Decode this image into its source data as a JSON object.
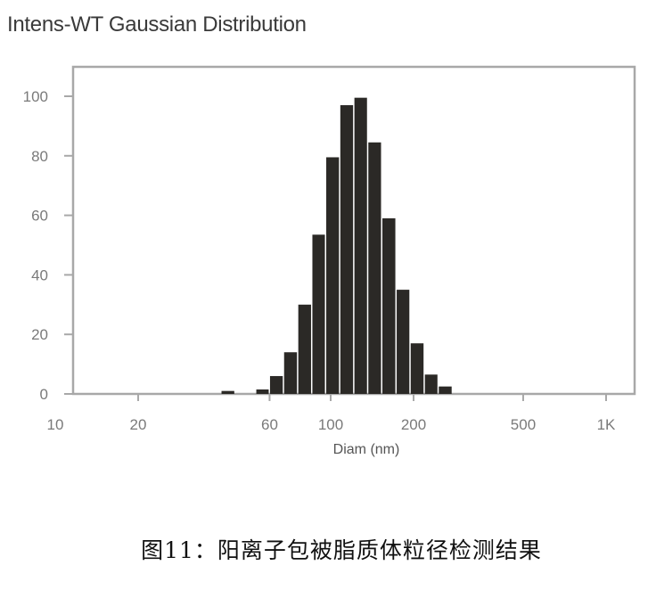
{
  "chart_data": {
    "type": "bar",
    "title": "Intens-WT Gaussian Distribution",
    "xlabel": "Diam (nm)",
    "ylabel": "",
    "x_scale": "log",
    "xlim": [
      10,
      1200
    ],
    "ylim": [
      0,
      110
    ],
    "x_ticks": [
      {
        "value": 10,
        "label": "10"
      },
      {
        "value": 20,
        "label": "20"
      },
      {
        "value": 60,
        "label": "60"
      },
      {
        "value": 100,
        "label": "100"
      },
      {
        "value": 200,
        "label": "200"
      },
      {
        "value": 500,
        "label": "500"
      },
      {
        "value": 1000,
        "label": "1K"
      }
    ],
    "y_ticks": [
      {
        "value": 0,
        "label": "0"
      },
      {
        "value": 20,
        "label": "20"
      },
      {
        "value": 40,
        "label": "40"
      },
      {
        "value": 60,
        "label": "60"
      },
      {
        "value": 80,
        "label": "80"
      },
      {
        "value": 100,
        "label": "100"
      }
    ],
    "grid": false,
    "bars": [
      {
        "x0": 40.0,
        "x1": 45.0,
        "value": 1
      },
      {
        "x0": 53.5,
        "x1": 60.0,
        "value": 1.5
      },
      {
        "x0": 60.0,
        "x1": 67.5,
        "value": 6
      },
      {
        "x0": 67.5,
        "x1": 76.0,
        "value": 14
      },
      {
        "x0": 76.0,
        "x1": 85.5,
        "value": 30
      },
      {
        "x0": 85.5,
        "x1": 96.0,
        "value": 53.5
      },
      {
        "x0": 96.0,
        "x1": 108.0,
        "value": 79.5
      },
      {
        "x0": 108.0,
        "x1": 121.5,
        "value": 97
      },
      {
        "x0": 121.5,
        "x1": 136.5,
        "value": 99.5
      },
      {
        "x0": 136.5,
        "x1": 153.5,
        "value": 84.5
      },
      {
        "x0": 153.5,
        "x1": 173.0,
        "value": 59
      },
      {
        "x0": 173.0,
        "x1": 194.5,
        "value": 35
      },
      {
        "x0": 194.5,
        "x1": 219.0,
        "value": 17
      },
      {
        "x0": 219.0,
        "x1": 246.0,
        "value": 6.5
      },
      {
        "x0": 246.0,
        "x1": 277.0,
        "value": 2.5
      }
    ],
    "colors": {
      "bar": "#2b2926",
      "frame": "#a8a8a8",
      "tick_text": "#7a7a7a"
    }
  },
  "caption": "图11：阳离子包被脂质体粒径检测结果"
}
